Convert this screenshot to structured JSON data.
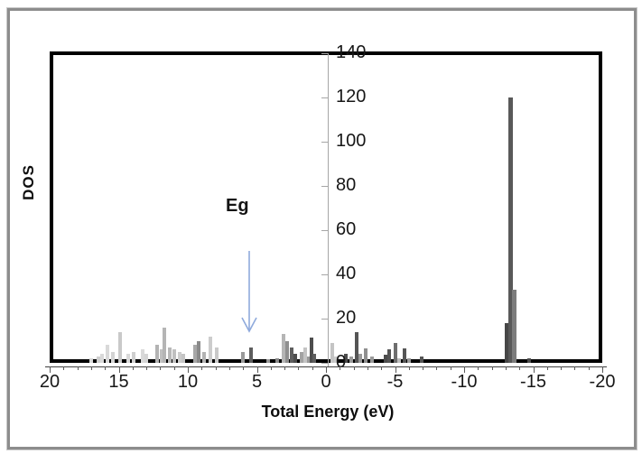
{
  "figure": {
    "background": "#ffffff",
    "frame_color": "#8d8d8d",
    "plot_border_color": "#000000"
  },
  "chart_data": {
    "type": "bar",
    "title": "",
    "xlabel": "Total Energy (eV)",
    "ylabel": "DOS",
    "x_range": [
      20,
      -20
    ],
    "x_axis_reversed": true,
    "y_range": [
      0,
      140
    ],
    "x_ticks": [
      20,
      15,
      10,
      5,
      0,
      "-5",
      "-10",
      "-15",
      "-20"
    ],
    "x_tick_values": [
      20,
      15,
      10,
      5,
      0,
      -5,
      -10,
      -15,
      -20
    ],
    "x_minor_tick_step": 1,
    "y_ticks": [
      0,
      20,
      40,
      60,
      80,
      100,
      120,
      140
    ],
    "grid": "off",
    "legend": "none",
    "y_axis_position": "at x = 0 (center of plot)",
    "annotation": {
      "label": "Eg",
      "arrow_color": "#8faadc",
      "arrow_points_to_x": 5.6
    },
    "bars": [
      {
        "x": 17.0,
        "y": 2,
        "color": "#d9d9d9"
      },
      {
        "x": 16.5,
        "y": 3,
        "color": "#cfcfcf"
      },
      {
        "x": 16.2,
        "y": 4,
        "color": "#d9d9d9"
      },
      {
        "x": 15.8,
        "y": 8,
        "color": "#d9d9d9"
      },
      {
        "x": 15.4,
        "y": 5,
        "color": "#d4d4d4"
      },
      {
        "x": 14.9,
        "y": 14,
        "color": "#c9c9c9"
      },
      {
        "x": 14.3,
        "y": 4,
        "color": "#d9d9d9"
      },
      {
        "x": 13.9,
        "y": 5,
        "color": "#cfcfcf"
      },
      {
        "x": 13.3,
        "y": 6,
        "color": "#d9d9d9"
      },
      {
        "x": 13.0,
        "y": 4,
        "color": "#d4d4d4"
      },
      {
        "x": 12.2,
        "y": 8,
        "color": "#b3b3b3"
      },
      {
        "x": 11.9,
        "y": 6,
        "color": "#c0c0c0"
      },
      {
        "x": 11.7,
        "y": 16,
        "color": "#b5b5b5"
      },
      {
        "x": 11.3,
        "y": 7,
        "color": "#b8b8b8"
      },
      {
        "x": 11.0,
        "y": 6,
        "color": "#c0c0c0"
      },
      {
        "x": 10.6,
        "y": 5,
        "color": "#cccccc"
      },
      {
        "x": 10.3,
        "y": 4,
        "color": "#c4c4c4"
      },
      {
        "x": 9.5,
        "y": 8,
        "color": "#a8a8a8"
      },
      {
        "x": 9.2,
        "y": 10,
        "color": "#8a8a8a"
      },
      {
        "x": 8.8,
        "y": 5,
        "color": "#b3b3b3"
      },
      {
        "x": 8.4,
        "y": 12,
        "color": "#cccccc"
      },
      {
        "x": 7.9,
        "y": 7,
        "color": "#c9c9c9"
      },
      {
        "x": 6.0,
        "y": 5,
        "color": "#9a9a9a"
      },
      {
        "x": 5.4,
        "y": 7,
        "color": "#5e5e5e"
      },
      {
        "x": 4.2,
        "y": 1.5,
        "color": "#9a9a9a"
      },
      {
        "x": 3.5,
        "y": 2,
        "color": "#8a8a8a"
      },
      {
        "x": 3.1,
        "y": 13,
        "color": "#b5b5b5"
      },
      {
        "x": 2.8,
        "y": 10,
        "color": "#8f8f8f"
      },
      {
        "x": 2.5,
        "y": 7,
        "color": "#5e5e5e"
      },
      {
        "x": 2.2,
        "y": 4,
        "color": "#4d4d4d"
      },
      {
        "x": 1.8,
        "y": 5,
        "color": "#a3a3a3"
      },
      {
        "x": 1.5,
        "y": 7,
        "color": "#c4c4c4"
      },
      {
        "x": 1.25,
        "y": 3,
        "color": "#9a9a9a"
      },
      {
        "x": 1.05,
        "y": 11.5,
        "color": "#4d4d4d"
      },
      {
        "x": 0.85,
        "y": 4,
        "color": "#5e5e5e"
      },
      {
        "x": -0.45,
        "y": 9,
        "color": "#c4c4c4"
      },
      {
        "x": -0.7,
        "y": 3,
        "color": "#cccccc"
      },
      {
        "x": -1.45,
        "y": 4,
        "color": "#4d4d4d"
      },
      {
        "x": -1.8,
        "y": 3,
        "color": "#9a9a9a"
      },
      {
        "x": -2.2,
        "y": 14,
        "color": "#555555"
      },
      {
        "x": -2.5,
        "y": 4,
        "color": "#9a9a9a"
      },
      {
        "x": -2.9,
        "y": 6.5,
        "color": "#8f8f8f"
      },
      {
        "x": -3.3,
        "y": 3,
        "color": "#9a9a9a"
      },
      {
        "x": -4.3,
        "y": 3.5,
        "color": "#4d4d4d"
      },
      {
        "x": -4.6,
        "y": 6,
        "color": "#555555"
      },
      {
        "x": -5.0,
        "y": 9,
        "color": "#6e6e6e"
      },
      {
        "x": -5.3,
        "y": 2,
        "color": "#bdbdbd"
      },
      {
        "x": -5.7,
        "y": 6.5,
        "color": "#555555"
      },
      {
        "x": -6.0,
        "y": 2,
        "color": "#9a9a9a"
      },
      {
        "x": -6.9,
        "y": 3,
        "color": "#555555"
      },
      {
        "x": -13.1,
        "y": 18,
        "color": "#474747",
        "w": 5
      },
      {
        "x": -13.35,
        "y": 120,
        "color": "#595959",
        "w": 5
      },
      {
        "x": -13.6,
        "y": 33,
        "color": "#7d7d7d",
        "w": 5
      },
      {
        "x": -14.7,
        "y": 2,
        "color": "#4d4d4d"
      }
    ]
  }
}
